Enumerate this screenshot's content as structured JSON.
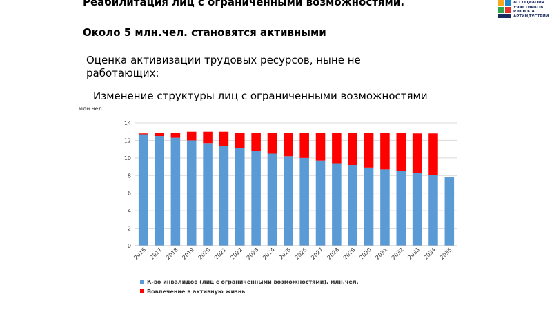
{
  "header": {
    "title": "Реабилитация лиц с ограниченными возможностями.",
    "subtitle": "Около 5 млн.чел. становятся активными",
    "description": "Оценка активизации трудовых ресурсов, ныне не работающих:",
    "logo_text_lines": [
      "АССОЦИАЦИЯ",
      "УЧАСТНИКОВ",
      "Р Ы Н К А",
      "АРТИНДУСТРИИ"
    ]
  },
  "colors": {
    "blue": "#5b9bd5",
    "red": "#ff0000",
    "grid": "#d9d9d9"
  },
  "chart_data": {
    "type": "bar",
    "stacked": true,
    "title": "Изменение структуры лиц с ограниченными возможностями",
    "ylabel": "млн.чел.",
    "ylim": [
      0,
      14
    ],
    "yticks": [
      0,
      2,
      4,
      6,
      8,
      10,
      12,
      14
    ],
    "grid": true,
    "legend_position": "bottom",
    "categories": [
      "2016",
      "2017",
      "2018",
      "2019",
      "2020",
      "2021",
      "2022",
      "2023",
      "2024",
      "2025",
      "2026",
      "2027",
      "2028",
      "2029",
      "2030",
      "2031",
      "2032",
      "2033",
      "2034",
      "2035"
    ],
    "series": [
      {
        "name": "К-во инвалидов (лиц с ограниченными возможностями), млн.чел.",
        "color": "#5b9bd5",
        "values": [
          12.7,
          12.5,
          12.3,
          12.0,
          11.7,
          11.4,
          11.1,
          10.8,
          10.5,
          10.2,
          10.0,
          9.7,
          9.4,
          9.2,
          8.9,
          8.7,
          8.5,
          8.3,
          8.1,
          7.8
        ]
      },
      {
        "name": "Вовлечение в активную жизнь",
        "color": "#ff0000",
        "values": [
          0.1,
          0.4,
          0.6,
          1.0,
          1.3,
          1.6,
          1.8,
          2.1,
          2.4,
          2.7,
          2.9,
          3.2,
          3.5,
          3.7,
          4.0,
          4.2,
          4.4,
          4.5,
          4.7,
          0
        ]
      }
    ]
  }
}
